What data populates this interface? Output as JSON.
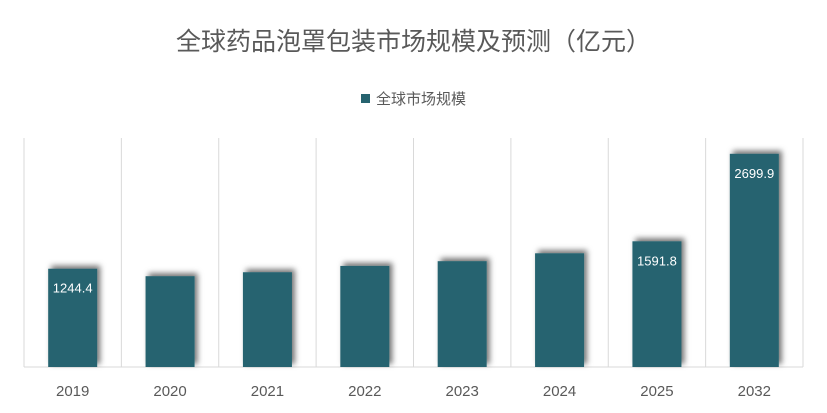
{
  "chart_data": {
    "type": "bar",
    "title": "全球药品泡罩包装市场规模及预测（亿元）",
    "legend": [
      "全球市场规模"
    ],
    "legend_position": "top",
    "categories": [
      "2019",
      "2020",
      "2021",
      "2022",
      "2023",
      "2024",
      "2025",
      "2032"
    ],
    "series": [
      {
        "name": "全球市场规模",
        "values": [
          1244.4,
          1150,
          1200,
          1280,
          1340,
          1440,
          1591.8,
          2699.9
        ],
        "data_labels": [
          "1244.4",
          "",
          "",
          "",
          "",
          "",
          "1591.8",
          "2699.9"
        ]
      }
    ],
    "xlabel": "",
    "ylabel": "",
    "ylim": [
      0,
      2900
    ],
    "grid": "vertical separators",
    "bar_color": "#26636f"
  }
}
